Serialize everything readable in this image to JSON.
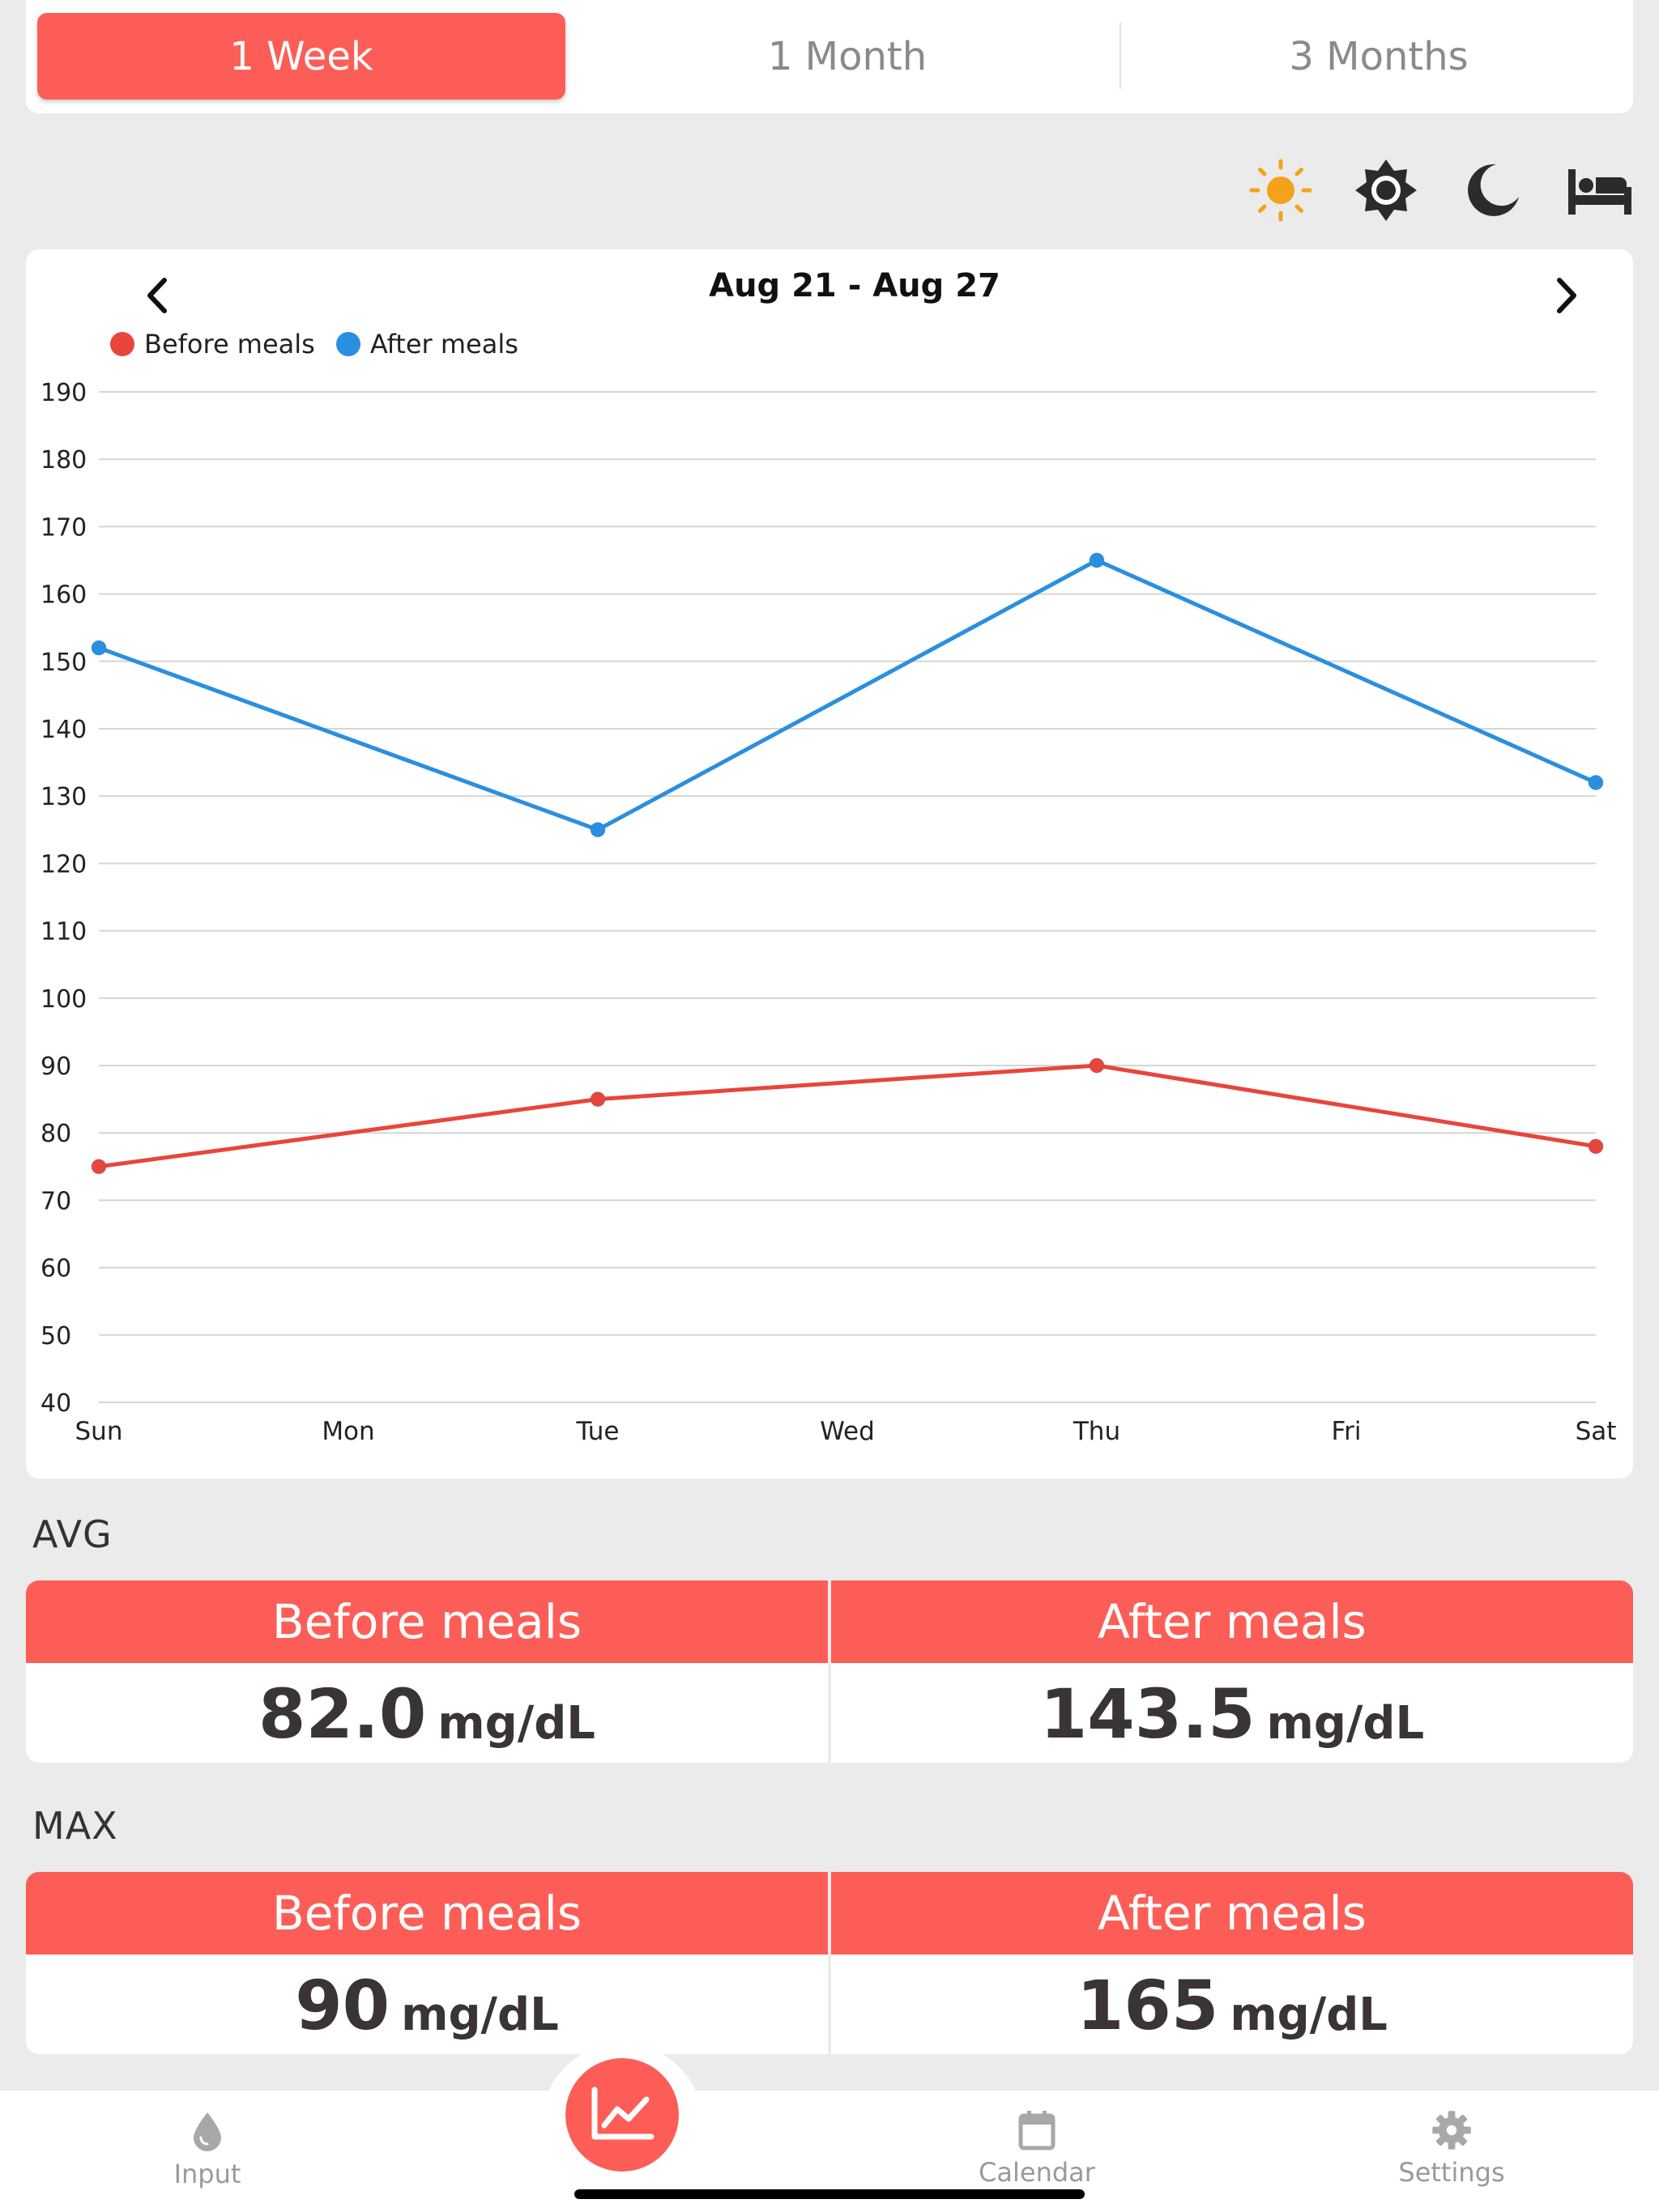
{
  "range_tabs": [
    "1 Week",
    "1 Month",
    "3 Months"
  ],
  "active_range": 0,
  "time_icons": [
    "sun-icon",
    "brightness-icon",
    "moon-icon",
    "bed-icon"
  ],
  "colors": {
    "accent": "#fc5e57",
    "before": "#e8453c",
    "after": "#2a8fe0",
    "sun": "#f5a21b"
  },
  "chart": {
    "title": "Aug 21 - Aug 27"
  },
  "chart_data": {
    "type": "line",
    "title": "Aug 21 - Aug 27",
    "categories": [
      "Sun",
      "Mon",
      "Tue",
      "Wed",
      "Thu",
      "Fri",
      "Sat"
    ],
    "series": [
      {
        "name": "Before meals",
        "values": [
          75,
          null,
          85,
          null,
          90,
          null,
          78
        ]
      },
      {
        "name": "After meals",
        "values": [
          152,
          null,
          125,
          null,
          165,
          null,
          132
        ]
      }
    ],
    "ylim": [
      40,
      190
    ],
    "yticks": [
      190,
      180,
      170,
      160,
      150,
      140,
      130,
      120,
      110,
      100,
      90,
      80,
      70,
      60,
      50,
      40
    ],
    "grid": true,
    "legend": "top-left"
  },
  "avg": {
    "label": "AVG",
    "before": {
      "label": "Before meals",
      "value": "82.0",
      "unit": "mg/dL"
    },
    "after": {
      "label": "After meals",
      "value": "143.5",
      "unit": "mg/dL"
    }
  },
  "max": {
    "label": "MAX",
    "before": {
      "label": "Before meals",
      "value": "90",
      "unit": "mg/dL"
    },
    "after": {
      "label": "After meals",
      "value": "165",
      "unit": "mg/dL"
    }
  },
  "tabbar": {
    "input": "Input",
    "calendar": "Calendar",
    "settings": "Settings"
  }
}
